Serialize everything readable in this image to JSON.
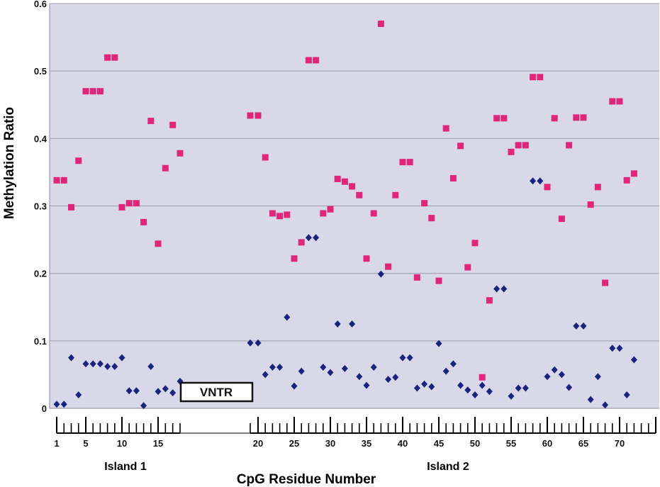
{
  "chart_data": {
    "type": "scatter",
    "xlabel": "CpG Residue Number",
    "ylabel": "Methylation Ratio",
    "ylim": [
      0,
      0.6
    ],
    "yticks": [
      "0",
      "0.1",
      "0.2",
      "0.3",
      "0.4",
      "0.5",
      "0.6"
    ],
    "xtick_labels": [
      "1",
      "5",
      "10",
      "15",
      "20",
      "25",
      "30",
      "35",
      "40",
      "45",
      "50",
      "55",
      "60",
      "65",
      "70"
    ],
    "grid": true,
    "annotations": {
      "vntr": "VNTR",
      "island1": "Island 1",
      "island2": "Island 2"
    },
    "colors": {
      "series_pink": "#e0267a",
      "series_navy": "#1a237e",
      "plot_bg": "#d9d8e8",
      "grid": "#9a9aaa"
    },
    "series": [
      {
        "marker": "square",
        "color": "#e0267a",
        "x": [
          1,
          2,
          3,
          4,
          5,
          6,
          7,
          8,
          9,
          10,
          11,
          12,
          13,
          14,
          15,
          16,
          17,
          18,
          19,
          20,
          21,
          22,
          23,
          24,
          25,
          26,
          27,
          28,
          29,
          30,
          31,
          32,
          33,
          34,
          35,
          36,
          37,
          38,
          39,
          40,
          41,
          42,
          43,
          44,
          45,
          46,
          47,
          48,
          49,
          50,
          51,
          52,
          53,
          54,
          55,
          56,
          57,
          58,
          59,
          60,
          61,
          62,
          63,
          64,
          65,
          66,
          67,
          68,
          69,
          70,
          71,
          72,
          73,
          74,
          75
        ],
        "values": [
          0.338,
          0.338,
          0.298,
          0.367,
          0.47,
          0.47,
          0.47,
          0.52,
          0.52,
          0.298,
          0.304,
          0.304,
          0.276,
          0.426,
          0.244,
          0.356,
          0.42,
          0.378,
          0.434,
          0.434,
          0.372,
          0.289,
          0.285,
          0.287,
          0.222,
          0.246,
          0.516,
          0.516,
          0.289,
          0.295,
          0.34,
          0.336,
          0.329,
          0.316,
          0.222,
          0.289,
          0.57,
          0.21,
          0.316,
          0.365,
          0.365,
          0.194,
          0.304,
          0.282,
          0.189,
          0.415,
          0.341,
          0.389,
          0.209,
          0.245,
          0.046,
          0.16,
          0.43,
          0.43,
          0.38,
          0.39,
          0.39,
          0.491,
          0.491,
          0.328,
          0.43,
          0.281,
          0.39,
          0.431,
          0.431,
          0.302,
          0.328,
          0.186,
          0.455,
          0.455,
          0.338,
          0.348,
          null,
          null,
          null
        ]
      },
      {
        "marker": "diamond",
        "color": "#1a237e",
        "x": [
          1,
          2,
          3,
          4,
          5,
          6,
          7,
          8,
          9,
          10,
          11,
          12,
          13,
          14,
          15,
          16,
          17,
          18,
          19,
          20,
          21,
          22,
          23,
          24,
          25,
          26,
          27,
          28,
          29,
          30,
          31,
          32,
          33,
          34,
          35,
          36,
          37,
          38,
          39,
          40,
          41,
          42,
          43,
          44,
          45,
          46,
          47,
          48,
          49,
          50,
          51,
          52,
          53,
          54,
          55,
          56,
          57,
          58,
          59,
          60,
          61,
          62,
          63,
          64,
          65,
          66,
          67,
          68,
          69,
          70,
          71,
          72,
          73,
          74,
          75
        ],
        "values": [
          0.006,
          0.006,
          0.075,
          0.02,
          0.066,
          0.066,
          0.066,
          0.062,
          0.062,
          0.075,
          0.026,
          0.026,
          0.004,
          0.062,
          0.025,
          0.029,
          0.023,
          0.04,
          0.097,
          0.097,
          0.05,
          0.061,
          0.061,
          0.135,
          0.033,
          0.055,
          0.253,
          0.253,
          0.061,
          0.053,
          0.125,
          0.059,
          0.125,
          0.047,
          0.034,
          0.061,
          0.199,
          0.043,
          0.046,
          0.075,
          0.075,
          0.03,
          0.036,
          0.032,
          0.096,
          0.055,
          0.066,
          0.034,
          0.027,
          0.02,
          0.034,
          0.025,
          0.177,
          0.177,
          0.018,
          0.03,
          0.03,
          0.337,
          0.337,
          0.047,
          0.057,
          0.05,
          0.031,
          0.122,
          0.122,
          0.013,
          0.047,
          0.005,
          0.089,
          0.089,
          0.02,
          0.072,
          null,
          null,
          null
        ]
      }
    ]
  }
}
